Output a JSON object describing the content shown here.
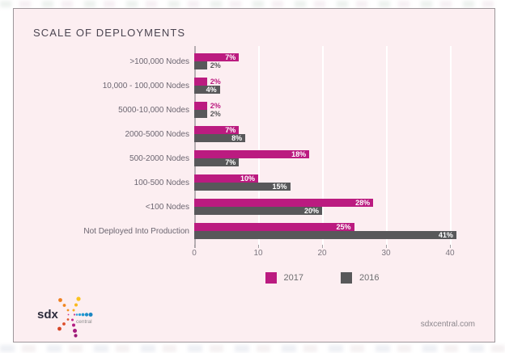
{
  "card": {
    "title": "SCALE OF DEPLOYMENTS",
    "footer_site": "sdxcentral.com"
  },
  "logo": {
    "brand_main": "sdx",
    "brand_sub": "central"
  },
  "chart_data": {
    "type": "bar",
    "orientation": "horizontal",
    "title": "SCALE OF DEPLOYMENTS",
    "categories": [
      ">100,000 Nodes",
      "10,000 - 100,000 Nodes",
      "5000-10,000 Nodes",
      "2000-5000 Nodes",
      "500-2000 Nodes",
      "100-500 Nodes",
      "<100 Nodes",
      "Not Deployed Into Production"
    ],
    "series": [
      {
        "name": "2017",
        "color": "#bb1b80",
        "values": [
          7,
          2,
          2,
          7,
          18,
          10,
          28,
          25
        ],
        "labels": [
          "7%",
          "2%",
          "2%",
          "7%",
          "18%",
          "10%",
          "28%",
          "25%"
        ]
      },
      {
        "name": "2016",
        "color": "#58585a",
        "values": [
          2,
          4,
          2,
          8,
          7,
          15,
          20,
          41
        ],
        "labels": [
          "2%",
          "4%",
          "2%",
          "8%",
          "7%",
          "15%",
          "20%",
          "41%"
        ]
      }
    ],
    "xlim": [
      0,
      40
    ],
    "xticks": [
      0,
      10,
      20,
      30,
      40
    ],
    "grid": "vertical-white",
    "legend_position": "bottom",
    "value_suffix": "%"
  }
}
